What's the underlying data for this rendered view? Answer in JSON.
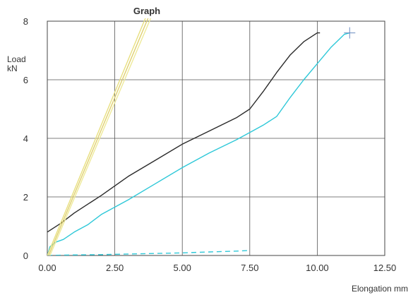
{
  "chart_data": {
    "type": "line",
    "title": "Graph",
    "xlabel": "Elongation mm",
    "ylabel_line1": "Load",
    "ylabel_line2": "kN",
    "xlim": [
      0,
      12.5
    ],
    "ylim": [
      0,
      8
    ],
    "xticks": [
      "0.00",
      "2.50",
      "5.00",
      "7.50",
      "10.00",
      "12.50"
    ],
    "yticks": [
      "0",
      "2",
      "4",
      "6",
      "8"
    ],
    "grid": true,
    "legend": "none",
    "series": [
      {
        "color": "#2a2a2a",
        "style": "solid",
        "points": [
          [
            0,
            0.8
          ],
          [
            0.5,
            1.1
          ],
          [
            1,
            1.45
          ],
          [
            2,
            2.05
          ],
          [
            3,
            2.7
          ],
          [
            4,
            3.25
          ],
          [
            5,
            3.8
          ],
          [
            6,
            4.25
          ],
          [
            7,
            4.7
          ],
          [
            7.5,
            5.0
          ],
          [
            8,
            5.6
          ],
          [
            8.5,
            6.25
          ],
          [
            9,
            6.85
          ],
          [
            9.5,
            7.3
          ],
          [
            10,
            7.6
          ],
          [
            10.1,
            7.6
          ]
        ]
      },
      {
        "color": "#2ec8d8",
        "style": "solid",
        "points": [
          [
            0,
            0
          ],
          [
            0.1,
            0.3
          ],
          [
            0.3,
            0.45
          ],
          [
            0.6,
            0.55
          ],
          [
            1,
            0.8
          ],
          [
            1.5,
            1.05
          ],
          [
            2,
            1.4
          ],
          [
            3,
            1.9
          ],
          [
            4,
            2.45
          ],
          [
            5,
            3.0
          ],
          [
            6,
            3.5
          ],
          [
            7,
            3.95
          ],
          [
            7.5,
            4.2
          ],
          [
            8,
            4.45
          ],
          [
            8.5,
            4.75
          ],
          [
            9,
            5.4
          ],
          [
            9.5,
            6.0
          ],
          [
            10,
            6.55
          ],
          [
            10.5,
            7.1
          ],
          [
            11,
            7.55
          ],
          [
            11.2,
            7.6
          ]
        ]
      },
      {
        "color": "#2ec8d8",
        "style": "dashed",
        "points": [
          [
            0,
            0
          ],
          [
            1,
            0.02
          ],
          [
            2,
            0.03
          ],
          [
            3,
            0.05
          ],
          [
            4,
            0.07
          ],
          [
            5,
            0.09
          ],
          [
            6,
            0.12
          ],
          [
            7,
            0.15
          ],
          [
            7.5,
            0.17
          ]
        ]
      },
      {
        "color": "#e8e080",
        "style": "solid",
        "points": [
          [
            0,
            0
          ],
          [
            3.7,
            8.25
          ]
        ]
      },
      {
        "color": "#e0d070",
        "style": "solid",
        "points": [
          [
            0.05,
            0
          ],
          [
            3.8,
            8.25
          ]
        ]
      },
      {
        "color": "#eeea9a",
        "style": "solid",
        "points": [
          [
            0.1,
            0
          ],
          [
            3.9,
            8.25
          ]
        ]
      }
    ],
    "markers": [
      {
        "x": 11.2,
        "y": 7.6,
        "color": "#6a8cc0"
      }
    ]
  }
}
